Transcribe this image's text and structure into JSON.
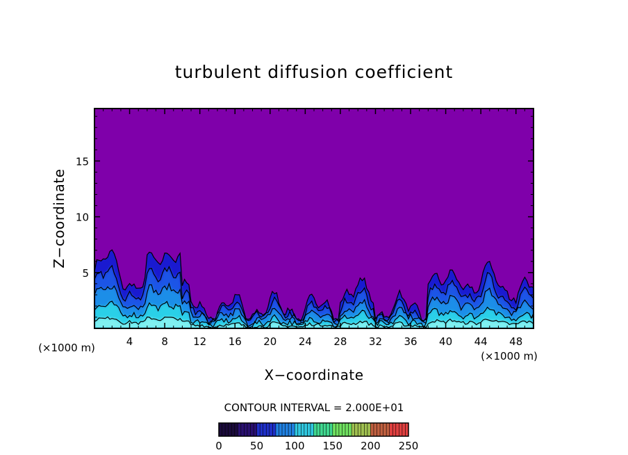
{
  "chart_data": {
    "type": "heatmap",
    "title": "turbulent diffusion coefficient",
    "xlabel": "X−coordinate",
    "ylabel": "Z−coordinate",
    "x_unit_left": "(×1000 m)",
    "x_unit_right": "(×1000 m)",
    "xlim": [
      0,
      50
    ],
    "ylim": [
      0,
      19.7
    ],
    "x_ticks": [
      4,
      8,
      12,
      16,
      20,
      24,
      28,
      32,
      36,
      40,
      44,
      48
    ],
    "y_ticks": [
      5,
      10,
      15
    ],
    "background_value": 0,
    "contour_interval_label": "CONTOUR INTERVAL = 2.000E+01",
    "colorbar": {
      "min": 0,
      "max": 250,
      "tick_values": [
        0,
        50,
        100,
        150,
        200,
        250
      ],
      "palette": [
        "#1a0a3a",
        "#2a1070",
        "#1f30c8",
        "#2080e0",
        "#30c8e0",
        "#40d890",
        "#70e060",
        "#a0c050",
        "#c06040",
        "#e04040"
      ]
    },
    "background_color": "#7f00aa",
    "colors": {
      "level1": "#1a1ad0",
      "level2": "#1f55e6",
      "level3": "#1f8ee8",
      "level4": "#2ad0e8",
      "level5": "#80f0f0"
    }
  }
}
